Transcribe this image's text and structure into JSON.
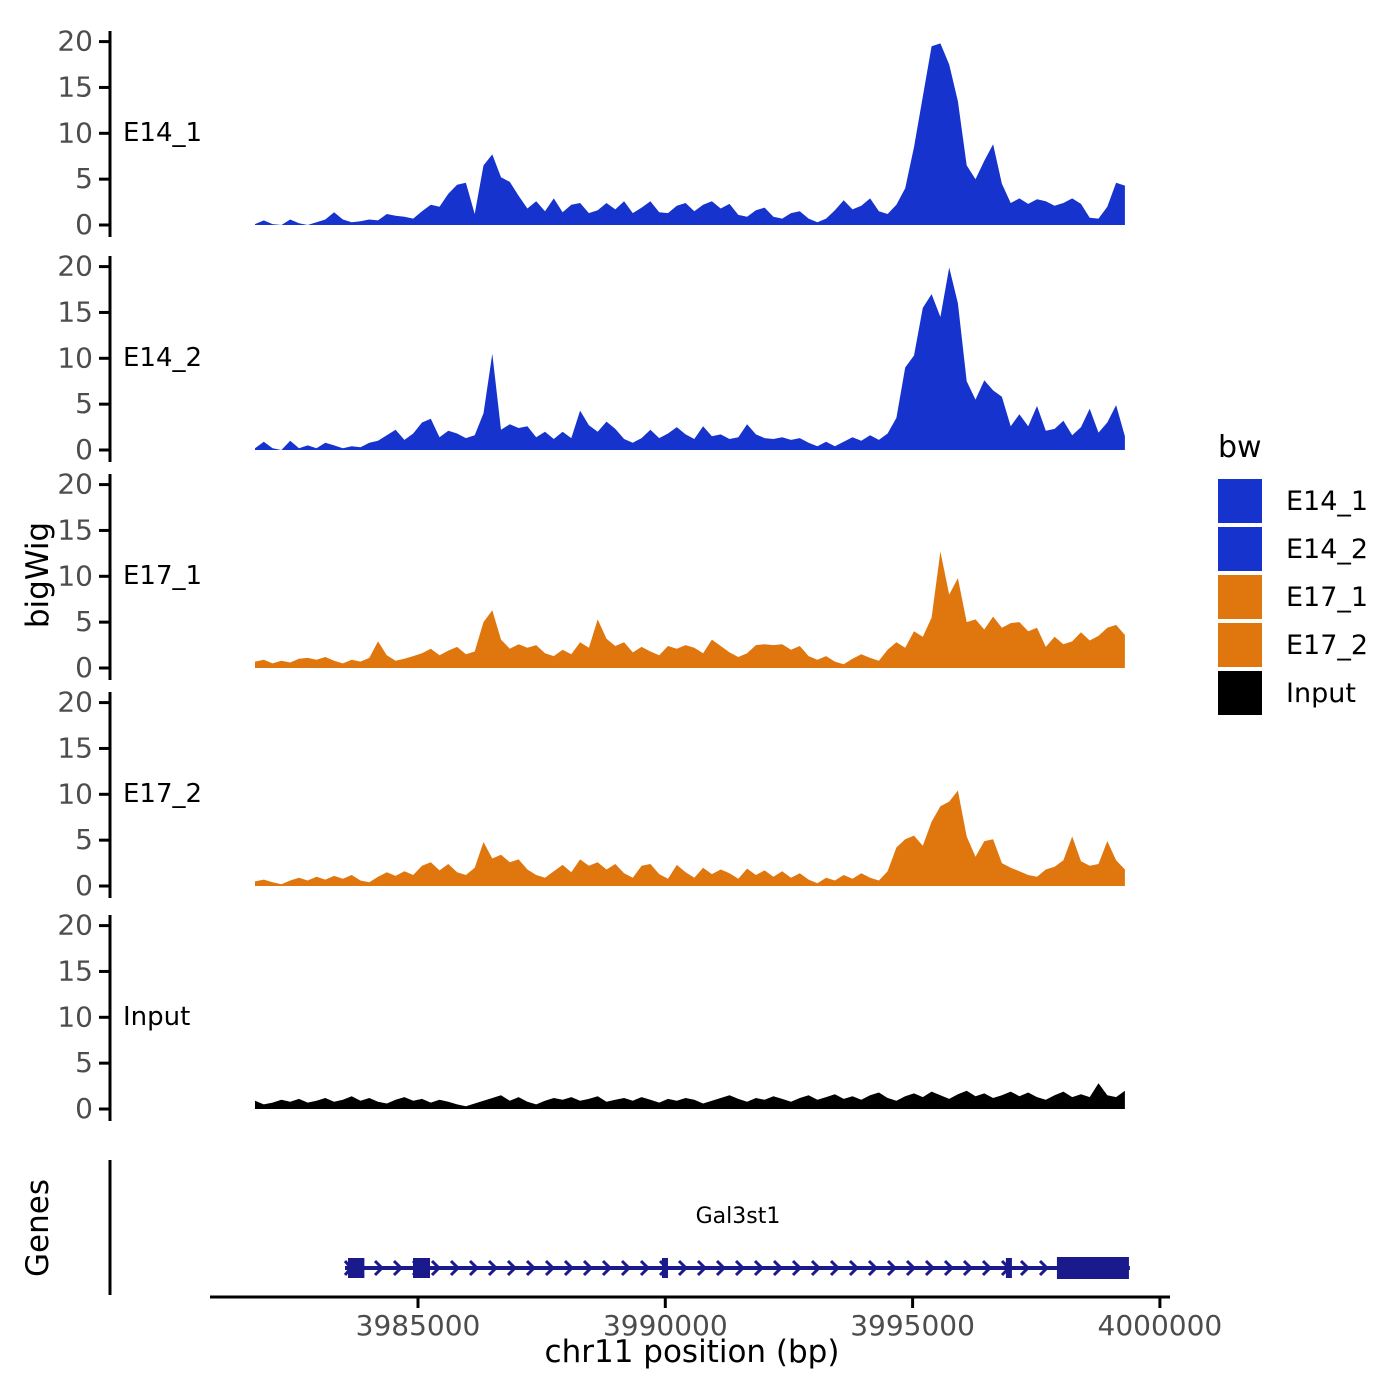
{
  "figure": {
    "y_axis_title": "bigWig",
    "genes_panel_title": "Genes",
    "x_axis_title": "chr11 position (bp)",
    "theme": {
      "tick_label_color": "#4d4d4d",
      "axis_color": "#000000",
      "background": "#ffffff"
    }
  },
  "legend": {
    "title": "bw",
    "items": [
      {
        "label": "E14_1",
        "color": "#1733CD"
      },
      {
        "label": "E14_2",
        "color": "#1733CD"
      },
      {
        "label": "E17_1",
        "color": "#E0770E"
      },
      {
        "label": "E17_2",
        "color": "#E0770E"
      },
      {
        "label": "Input",
        "color": "#000000"
      }
    ]
  },
  "chart_data": {
    "type": "area",
    "title": "",
    "xlabel": "chr11 position (bp)",
    "ylabel": "bigWig",
    "ylim": [
      0,
      20
    ],
    "yticks": [
      0,
      5,
      10,
      15,
      20
    ],
    "x_domain_bp": [
      3981705,
      3999292
    ],
    "x_points": 100,
    "xticks": [
      {
        "bp": 3985000,
        "label": "3985000"
      },
      {
        "bp": 3990000,
        "label": "3990000"
      },
      {
        "bp": 3995000,
        "label": "3995000"
      },
      {
        "bp": 4000000,
        "label": "4000000"
      }
    ],
    "tracks": [
      {
        "name": "E14_1",
        "color": "#1733CD",
        "values": [
          0.1,
          0.5,
          0.1,
          0,
          0.6,
          0.2,
          0,
          0.3,
          0.6,
          1.4,
          0.6,
          0.3,
          0.4,
          0.6,
          0.5,
          1.2,
          1.0,
          0.9,
          0.7,
          1.5,
          2.2,
          2.0,
          3.4,
          4.4,
          4.6,
          1.2,
          6.5,
          7.7,
          5.2,
          4.7,
          3.2,
          1.8,
          2.6,
          1.5,
          2.9,
          1.4,
          2.2,
          2.4,
          1.3,
          1.6,
          2.4,
          1.7,
          2.6,
          1.3,
          1.9,
          2.6,
          1.4,
          1.3,
          2.1,
          2.4,
          1.5,
          2.2,
          2.6,
          1.8,
          2.3,
          1.1,
          0.9,
          1.6,
          1.9,
          0.9,
          0.7,
          1.3,
          1.5,
          0.7,
          0.3,
          0.7,
          1.6,
          2.7,
          1.7,
          2.1,
          2.9,
          1.5,
          1.2,
          2.2,
          4.0,
          8.5,
          14.0,
          19.5,
          19.8,
          17.5,
          13.5,
          6.5,
          5.0,
          7.0,
          8.8,
          4.5,
          2.4,
          2.9,
          2.3,
          2.8,
          2.6,
          2.1,
          2.4,
          2.9,
          2.3,
          0.8,
          0.7,
          2.0,
          4.6,
          4.3
        ]
      },
      {
        "name": "E14_2",
        "color": "#1733CD",
        "values": [
          0.2,
          0.9,
          0.2,
          0,
          1.0,
          0.2,
          0.5,
          0.2,
          0.8,
          0.5,
          0.2,
          0.4,
          0.3,
          0.8,
          1.0,
          1.6,
          2.2,
          1.1,
          1.8,
          3.0,
          3.4,
          1.4,
          2.1,
          1.8,
          1.3,
          1.6,
          4.0,
          10.5,
          2.2,
          2.8,
          2.4,
          2.6,
          1.4,
          2.0,
          1.2,
          2.0,
          1.3,
          4.3,
          2.7,
          2.0,
          3.1,
          2.3,
          1.2,
          0.8,
          1.3,
          2.2,
          1.3,
          1.8,
          2.5,
          1.7,
          1.2,
          2.6,
          1.5,
          1.7,
          1.2,
          1.4,
          2.8,
          1.7,
          1.3,
          1.2,
          1.4,
          1.1,
          1.3,
          0.8,
          0.4,
          0.9,
          0.4,
          0.9,
          1.4,
          1.0,
          1.6,
          1.1,
          1.8,
          3.5,
          9.0,
          10.3,
          15.5,
          17.0,
          14.5,
          19.9,
          16.0,
          7.5,
          5.5,
          7.6,
          6.5,
          5.8,
          2.6,
          3.9,
          2.6,
          4.8,
          2.1,
          2.3,
          3.2,
          1.6,
          2.5,
          4.5,
          1.9,
          3.0,
          4.9,
          1.5
        ]
      },
      {
        "name": "E17_1",
        "color": "#E0770E",
        "values": [
          0.7,
          0.9,
          0.5,
          0.8,
          0.6,
          1.0,
          1.1,
          0.9,
          1.2,
          0.8,
          0.5,
          0.9,
          0.7,
          1.1,
          2.9,
          1.4,
          0.8,
          1.0,
          1.3,
          1.6,
          2.1,
          1.4,
          1.9,
          2.3,
          1.5,
          1.8,
          5.0,
          6.3,
          3.1,
          2.1,
          2.6,
          2.2,
          2.5,
          1.6,
          1.3,
          2.0,
          1.5,
          2.8,
          2.2,
          5.3,
          3.2,
          2.4,
          2.8,
          1.7,
          2.3,
          1.8,
          1.4,
          2.4,
          2.1,
          2.5,
          2.2,
          1.6,
          3.1,
          2.4,
          1.7,
          1.2,
          1.6,
          2.5,
          2.6,
          2.5,
          2.6,
          2.0,
          2.4,
          1.3,
          0.9,
          1.3,
          0.7,
          0.4,
          1.0,
          1.5,
          1.1,
          0.8,
          2.0,
          2.8,
          2.2,
          4.0,
          3.4,
          5.5,
          12.7,
          8.0,
          9.8,
          5.0,
          5.3,
          4.2,
          5.6,
          4.4,
          4.9,
          5.0,
          4.0,
          4.4,
          2.3,
          3.4,
          2.6,
          2.9,
          3.9,
          3.0,
          3.5,
          4.4,
          4.7,
          3.6
        ]
      },
      {
        "name": "E17_2",
        "color": "#E0770E",
        "values": [
          0.5,
          0.7,
          0.4,
          0.2,
          0.6,
          0.9,
          0.6,
          1.0,
          0.7,
          1.1,
          0.8,
          1.2,
          0.6,
          0.4,
          1.0,
          1.5,
          1.1,
          1.6,
          1.2,
          2.2,
          2.6,
          1.7,
          2.4,
          1.5,
          1.2,
          2.0,
          4.8,
          3.0,
          3.4,
          2.6,
          2.9,
          1.8,
          1.2,
          0.9,
          1.6,
          2.3,
          1.5,
          2.9,
          2.2,
          2.6,
          1.8,
          2.4,
          1.4,
          0.9,
          2.2,
          2.4,
          1.3,
          0.8,
          2.3,
          1.5,
          0.9,
          2.0,
          1.3,
          1.8,
          1.4,
          0.8,
          1.9,
          1.2,
          1.7,
          1.0,
          1.6,
          0.9,
          1.4,
          0.7,
          0.3,
          0.9,
          0.6,
          1.2,
          0.8,
          1.4,
          0.9,
          0.6,
          1.6,
          4.2,
          5.1,
          5.5,
          4.4,
          7.0,
          8.7,
          9.2,
          10.4,
          5.4,
          3.2,
          4.9,
          5.1,
          2.5,
          2.0,
          1.6,
          1.2,
          1.0,
          1.8,
          2.1,
          2.8,
          5.4,
          2.7,
          2.2,
          2.4,
          4.9,
          2.8,
          1.8
        ]
      },
      {
        "name": "Input",
        "color": "#000000",
        "values": [
          0.9,
          0.5,
          0.7,
          1.0,
          0.8,
          1.1,
          0.7,
          0.9,
          1.2,
          0.8,
          1.0,
          1.4,
          0.9,
          1.2,
          0.8,
          0.6,
          1.0,
          1.3,
          0.9,
          1.1,
          0.7,
          1.0,
          0.8,
          0.5,
          0.3,
          0.6,
          0.9,
          1.2,
          1.5,
          0.9,
          1.3,
          0.8,
          0.5,
          0.9,
          1.2,
          1.0,
          1.3,
          0.9,
          1.1,
          1.4,
          0.8,
          1.0,
          1.2,
          0.9,
          1.3,
          1.0,
          0.7,
          1.1,
          0.9,
          1.2,
          1.0,
          0.6,
          0.9,
          1.2,
          1.5,
          1.1,
          0.8,
          1.2,
          1.0,
          1.4,
          1.1,
          0.8,
          1.2,
          1.5,
          1.0,
          1.3,
          1.6,
          1.1,
          1.4,
          1.0,
          1.5,
          1.8,
          1.2,
          0.9,
          1.4,
          1.7,
          1.3,
          1.9,
          1.5,
          1.1,
          1.6,
          2.0,
          1.4,
          1.7,
          1.2,
          1.5,
          1.9,
          1.4,
          1.8,
          1.3,
          1.0,
          1.5,
          1.9,
          1.3,
          1.6,
          1.3,
          2.8,
          1.5,
          1.3,
          2.0
        ]
      }
    ],
    "gene": {
      "name": "Gal3st1",
      "strand": "+",
      "color": "#1A1A8C",
      "span_bp": [
        3983524,
        3999394
      ],
      "exons_bp": [
        [
          3983585,
          3983916
        ],
        [
          3984899,
          3985243
        ],
        [
          3989933,
          3990054
        ],
        [
          3996887,
          3997008
        ],
        [
          3997918,
          3999374
        ]
      ]
    }
  }
}
